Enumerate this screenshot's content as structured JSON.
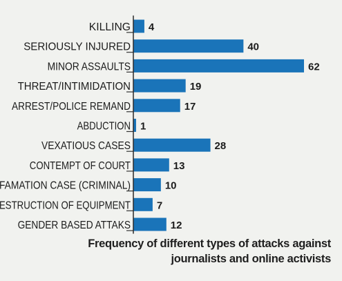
{
  "chart_data": {
    "type": "bar",
    "orientation": "horizontal",
    "title": "",
    "caption_lines": [
      "Frequency of different types of attacks against",
      "journalists and online activists"
    ],
    "categories": [
      "KILLING",
      "SERIOUSLY  INJURED",
      "MINOR ASSAULTS",
      "THREAT/INTIMIDATION",
      "ARREST/POLICE REMAND",
      "ABDUCTION",
      "VEXATIOUS CASES",
      "CONTEMPT OF COURT",
      "FAMATION CASE (CRIMINAL)",
      "ESTRUCTION OF EQUIPMENT",
      "GENDER BASED ATTAKS"
    ],
    "values": [
      4,
      40,
      62,
      19,
      17,
      1,
      28,
      13,
      10,
      7,
      12
    ],
    "xlim": [
      0,
      62
    ],
    "grid": false,
    "legend": "none",
    "data_labels": true,
    "bar_color": "#1a74b9",
    "label_color": "#1c1c1c"
  }
}
